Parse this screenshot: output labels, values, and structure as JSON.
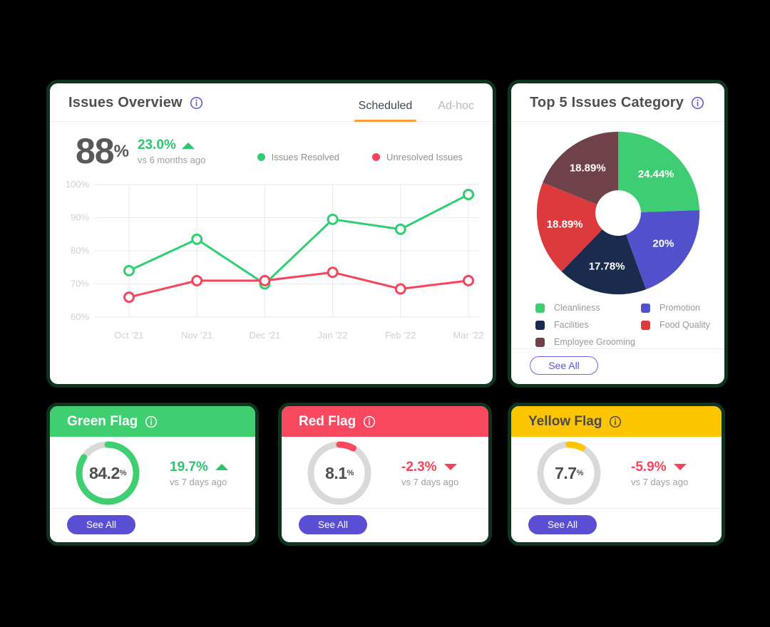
{
  "colors": {
    "page_bg": "#000000",
    "card_border": "#0e3420",
    "accent_purple": "#5a4fd4",
    "tab_underline": "#ff9b38",
    "positive": "#2fc56f",
    "negative": "#f4455c",
    "gauge_track": "#d9d9d9",
    "grid_line": "#e8e8e8",
    "axis_label": "#cfcfcf"
  },
  "issues_overview": {
    "title": "Issues Overview",
    "tabs": [
      {
        "label": "Scheduled"
      },
      {
        "label": "Ad-hoc"
      }
    ],
    "active_tab": "Scheduled",
    "stat": {
      "value": "88",
      "unit": "%",
      "change": "23.0%",
      "direction": "up",
      "compare_label": "vs 6 months ago"
    }
  },
  "top_issues": {
    "title": "Top 5 Issues Category",
    "see_all_label": "See All"
  },
  "flags": [
    {
      "title": "Green Flag",
      "header_color": "#3fce70",
      "header_text_color": "#ffffff",
      "gauge_display": "84.2",
      "gauge_unit": "%",
      "trend_change": "19.7%",
      "trend_direction": "up",
      "compare_label": "vs 7 days ago",
      "see_all_label": "See All"
    },
    {
      "title": "Red Flag",
      "header_color": "#f9485f",
      "header_text_color": "#ffffff",
      "gauge_display": "8.1",
      "gauge_unit": "%",
      "trend_change": "-2.3%",
      "trend_direction": "down",
      "compare_label": "vs 7 days ago",
      "see_all_label": "See All"
    },
    {
      "title": "Yellow Flag",
      "header_color": "#fdc500",
      "header_text_color": "#4a4a4a",
      "gauge_display": "7.7",
      "gauge_unit": "%",
      "trend_change": "-5.9%",
      "trend_direction": "down",
      "compare_label": "vs 7 days ago",
      "see_all_label": "See All"
    }
  ],
  "chart_data": [
    {
      "id": "issues-line",
      "type": "line",
      "title": "Issues Overview — Scheduled",
      "x": [
        "Oct ’21",
        "Nov ’21",
        "Dec ’21",
        "Jan ’22",
        "Feb ’22",
        "Mar ’22"
      ],
      "series": [
        {
          "name": "Issues Resolved",
          "color": "#2fce71",
          "values": [
            74,
            83.5,
            70,
            89.5,
            86.5,
            97
          ]
        },
        {
          "name": "Unresolved Issues",
          "color": "#f4455c",
          "values": [
            66,
            71,
            71,
            73.5,
            68.5,
            71
          ]
        }
      ],
      "ylim": [
        60,
        100
      ],
      "yticks": [
        100,
        90,
        80,
        70,
        60
      ],
      "ytick_suffix": "%",
      "grid": true,
      "legend_position": "top"
    },
    {
      "id": "top-issues-donut",
      "type": "pie",
      "title": "Top 5 Issues Category",
      "donut_hole_ratio": 0.28,
      "slices": [
        {
          "label": "Cleanliness",
          "value": 24.44,
          "display": "24.44%",
          "color": "#3ecd73"
        },
        {
          "label": "Promotion",
          "value": 20.0,
          "display": "20%",
          "color": "#5152cb"
        },
        {
          "label": "Facilities",
          "value": 17.78,
          "display": "17.78%",
          "color": "#1a2b4d"
        },
        {
          "label": "Food Quality",
          "value": 18.89,
          "display": "18.89%",
          "color": "#dc3a3c"
        },
        {
          "label": "Employee Grooming",
          "value": 18.89,
          "display": "18.89%",
          "color": "#6f4249"
        }
      ],
      "legend_position": "bottom"
    },
    {
      "id": "green-flag-gauge",
      "type": "gauge",
      "value": 84.2,
      "display": "84.2%",
      "color": "#3fce70"
    },
    {
      "id": "red-flag-gauge",
      "type": "gauge",
      "value": 8.1,
      "display": "8.1%",
      "color": "#f9485f"
    },
    {
      "id": "yellow-flag-gauge",
      "type": "gauge",
      "value": 7.7,
      "display": "7.7%",
      "color": "#fdc500"
    }
  ]
}
